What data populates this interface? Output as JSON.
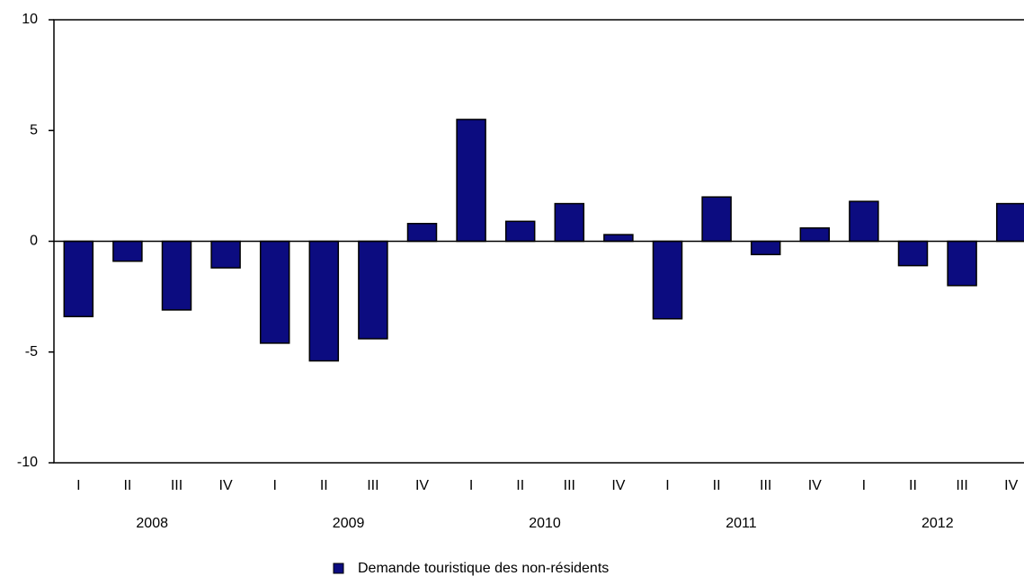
{
  "chart_data": {
    "type": "bar",
    "categories": [
      "I",
      "II",
      "III",
      "IV",
      "I",
      "II",
      "III",
      "IV",
      "I",
      "II",
      "III",
      "IV",
      "I",
      "II",
      "III",
      "IV",
      "I",
      "II",
      "III",
      "IV"
    ],
    "groups": [
      "2008",
      "2009",
      "2010",
      "2011",
      "2012"
    ],
    "series": [
      {
        "name": "Demande touristique des non-résidents",
        "color": "#0c0c80",
        "values": [
          -3.4,
          -0.9,
          -3.1,
          -1.2,
          -4.6,
          -5.4,
          -4.4,
          0.8,
          5.5,
          0.9,
          1.7,
          0.3,
          -3.5,
          2.0,
          -0.6,
          0.6,
          1.8,
          -1.1,
          -2.0,
          1.7
        ]
      }
    ],
    "ylim": [
      -10,
      10
    ],
    "yticks": [
      -10,
      -5,
      0,
      5,
      10
    ],
    "grid": false,
    "legend": "bottom"
  }
}
